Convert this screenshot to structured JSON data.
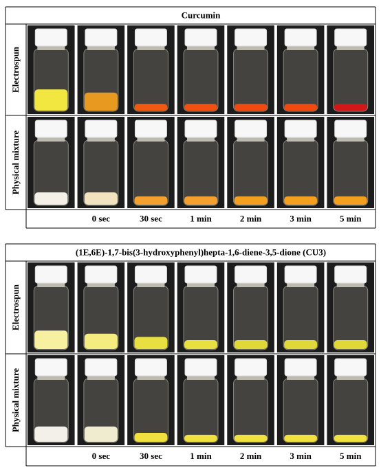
{
  "panels": [
    {
      "title": "Curcumin",
      "rows": [
        {
          "label": "Electrospun"
        },
        {
          "label": "Physical mixture"
        }
      ],
      "times": [
        "0 sec",
        "30 sec",
        "1 min",
        "2 min",
        "3 min",
        "5 min"
      ]
    },
    {
      "title": "(1E,6E)-1,7-bis(3-hydroxyphenyl)hepta-1,6-diene-3,5-dione (CU3)",
      "rows": [
        {
          "label": "Electrospun"
        },
        {
          "label": "Physical mixture"
        }
      ],
      "times": [
        "0 sec",
        "30 sec",
        "1 min",
        "2 min",
        "3 min",
        "5 min"
      ]
    }
  ]
}
